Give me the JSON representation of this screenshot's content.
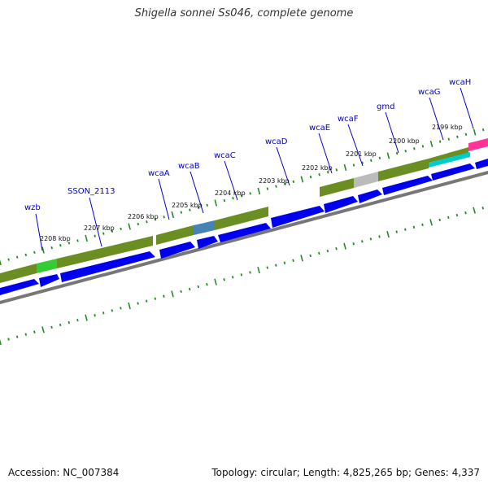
{
  "title": "Shigella sonnei Ss046, complete genome",
  "accession": "Accession: NC_007384",
  "summary": "Topology: circular; Length: 4,825,265 bp; Genes: 4,337",
  "colors": {
    "forward_cds": "#0000ee",
    "gene_olive": "#6b8e23",
    "gene_green": "#33cc33",
    "gene_steelblue": "#4682b4",
    "gene_gray": "#bbbbbb",
    "gene_cyan": "#00cccc",
    "gene_pink": "#ff3399",
    "tick": "#228b22",
    "backbone": "#777777"
  },
  "gene_labels": [
    {
      "name": "wzb"
    },
    {
      "name": "SSON_2113"
    },
    {
      "name": "wcaA"
    },
    {
      "name": "wcaB"
    },
    {
      "name": "wcaC"
    },
    {
      "name": "wcaD"
    },
    {
      "name": "wcaE"
    },
    {
      "name": "wcaF"
    },
    {
      "name": "gmd"
    },
    {
      "name": "wcaG"
    },
    {
      "name": "wcaH"
    }
  ],
  "tick_labels": [
    {
      "text": "2208 kbp"
    },
    {
      "text": "2207 kbp"
    },
    {
      "text": "2206 kbp"
    },
    {
      "text": "2205 kbp"
    },
    {
      "text": "2204 kbp"
    },
    {
      "text": "2203 kbp"
    },
    {
      "text": "2202 kbp"
    },
    {
      "text": "2201 kbp"
    },
    {
      "text": "2200 kbp"
    },
    {
      "text": "2199 kbp"
    }
  ]
}
